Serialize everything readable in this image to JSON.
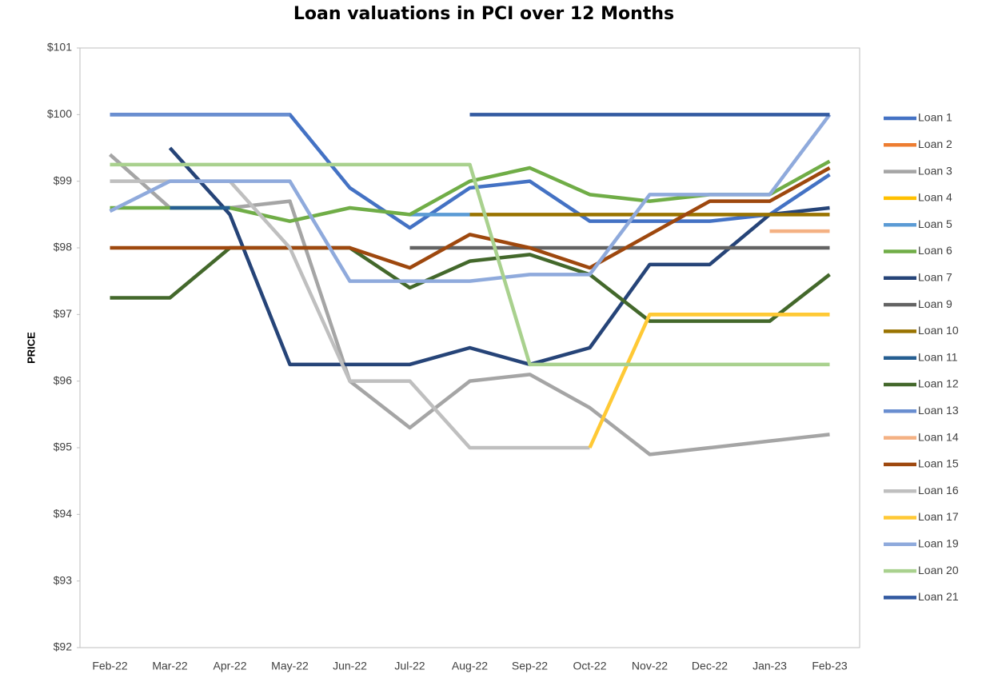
{
  "chart_data": {
    "type": "line",
    "title": "Loan valuations in PCI over 12 Months",
    "y_label": "PRICE",
    "categories": [
      "Feb-22",
      "Mar-22",
      "Apr-22",
      "May-22",
      "Jun-22",
      "Jul-22",
      "Aug-22",
      "Sep-22",
      "Oct-22",
      "Nov-22",
      "Dec-22",
      "Jan-23",
      "Feb-23"
    ],
    "ylim": [
      92,
      101
    ],
    "yticks": [
      {
        "value": 92,
        "label": "$92"
      },
      {
        "value": 93,
        "label": "$93"
      },
      {
        "value": 94,
        "label": "$94"
      },
      {
        "value": 95,
        "label": "$95"
      },
      {
        "value": 96,
        "label": "$96"
      },
      {
        "value": 97,
        "label": "$97"
      },
      {
        "value": 98,
        "label": "$98"
      },
      {
        "value": 99,
        "label": "$99"
      },
      {
        "value": 100,
        "label": "$100"
      },
      {
        "value": 101,
        "label": "$101"
      }
    ],
    "grid": false,
    "legend": "right",
    "series": [
      {
        "name": "Loan 1",
        "color": "#4472c4",
        "values": [
          100,
          100,
          100,
          100,
          98.9,
          98.3,
          98.9,
          99,
          98.4,
          98.4,
          98.4,
          98.5,
          99.1
        ]
      },
      {
        "name": "Loan 2",
        "color": "#ed7d31",
        "values": [
          null,
          null,
          null,
          null,
          null,
          null,
          null,
          null,
          null,
          null,
          null,
          null,
          null
        ]
      },
      {
        "name": "Loan 3",
        "color": "#a5a5a5",
        "values": [
          99.4,
          98.6,
          98.6,
          98.7,
          96,
          95.3,
          96,
          96.1,
          95.6,
          94.9,
          95,
          95.1,
          95.2
        ]
      },
      {
        "name": "Loan 4",
        "color": "#ffc000",
        "values": [
          null,
          null,
          null,
          null,
          null,
          null,
          null,
          null,
          null,
          97,
          97,
          97,
          97
        ]
      },
      {
        "name": "Loan 5",
        "color": "#5b9bd5",
        "values": [
          null,
          null,
          null,
          null,
          null,
          98.5,
          98.5,
          null,
          null,
          null,
          null,
          null,
          null
        ]
      },
      {
        "name": "Loan 6",
        "color": "#70ad47",
        "values": [
          98.6,
          98.6,
          98.6,
          98.4,
          98.6,
          98.5,
          99,
          99.2,
          98.8,
          98.7,
          98.8,
          98.8,
          99.3
        ]
      },
      {
        "name": "Loan 7",
        "color": "#264478",
        "values": [
          null,
          99.5,
          98.5,
          96.25,
          96.25,
          96.25,
          96.5,
          96.25,
          96.5,
          97.75,
          97.75,
          98.5,
          98.6
        ]
      },
      {
        "name": "Loan 9",
        "color": "#636363",
        "values": [
          null,
          null,
          null,
          null,
          null,
          98,
          98,
          98,
          98,
          98,
          98,
          98,
          98
        ]
      },
      {
        "name": "Loan 10",
        "color": "#997300",
        "values": [
          null,
          null,
          null,
          null,
          null,
          null,
          98.5,
          98.5,
          98.5,
          98.5,
          98.5,
          98.5,
          98.5
        ]
      },
      {
        "name": "Loan 11",
        "color": "#255e91",
        "values": [
          null,
          98.6,
          98.6,
          null,
          null,
          null,
          null,
          null,
          null,
          null,
          null,
          null,
          null
        ]
      },
      {
        "name": "Loan 12",
        "color": "#43682b",
        "values": [
          97.25,
          97.25,
          98,
          98,
          98,
          97.4,
          97.8,
          97.9,
          97.6,
          96.9,
          96.9,
          96.9,
          97.6
        ]
      },
      {
        "name": "Loan 13",
        "color": "#698ed0",
        "values": [
          100,
          100,
          100,
          100,
          null,
          null,
          null,
          null,
          null,
          null,
          null,
          null,
          null
        ]
      },
      {
        "name": "Loan 14",
        "color": "#f4b183",
        "values": [
          null,
          null,
          null,
          null,
          null,
          null,
          null,
          null,
          null,
          null,
          null,
          98.25,
          98.25
        ]
      },
      {
        "name": "Loan 15",
        "color": "#9e480e",
        "values": [
          98,
          98,
          98,
          98,
          98,
          97.7,
          98.2,
          98,
          97.7,
          98.2,
          98.7,
          98.7,
          99.2
        ]
      },
      {
        "name": "Loan 16",
        "color": "#bfbfbf",
        "values": [
          99,
          99,
          99,
          98,
          96,
          96,
          95,
          95,
          95,
          null,
          null,
          null,
          null
        ]
      },
      {
        "name": "Loan 17",
        "color": "#ffc935",
        "values": [
          null,
          null,
          null,
          null,
          null,
          null,
          null,
          null,
          95,
          97,
          97,
          97,
          97
        ]
      },
      {
        "name": "Loan 19",
        "color": "#8faadc",
        "values": [
          98.55,
          99,
          99,
          99,
          97.5,
          97.5,
          97.5,
          97.6,
          97.6,
          98.8,
          98.8,
          98.8,
          100
        ]
      },
      {
        "name": "Loan 20",
        "color": "#a9d18e",
        "values": [
          99.25,
          99.25,
          99.25,
          99.25,
          99.25,
          99.25,
          99.25,
          96.25,
          96.25,
          96.25,
          96.25,
          96.25,
          96.25
        ]
      },
      {
        "name": "Loan 21",
        "color": "#335aa1",
        "values": [
          null,
          null,
          null,
          null,
          null,
          null,
          100,
          100,
          100,
          100,
          100,
          100,
          100
        ]
      }
    ]
  }
}
